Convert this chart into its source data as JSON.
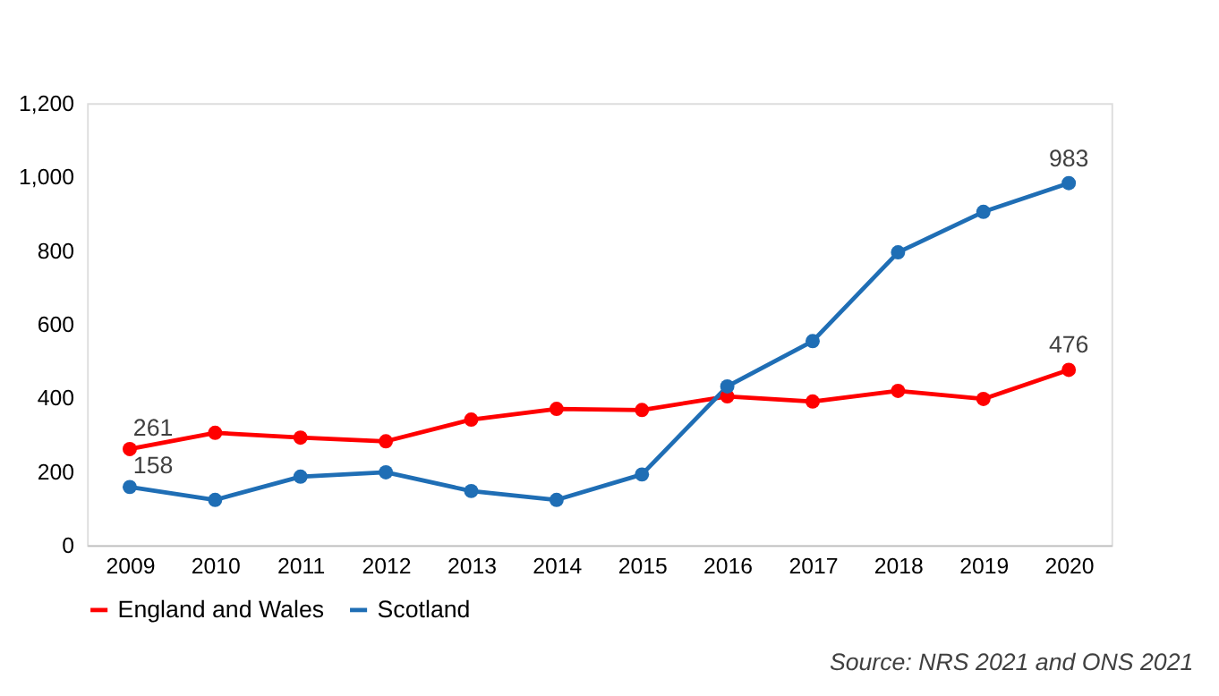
{
  "chart_data": {
    "type": "line",
    "categories": [
      "2009",
      "2010",
      "2011",
      "2012",
      "2013",
      "2014",
      "2015",
      "2016",
      "2017",
      "2018",
      "2019",
      "2020"
    ],
    "series": [
      {
        "name": "England and Wales",
        "color": "#ff0000",
        "values": [
          261,
          305,
          292,
          282,
          341,
          370,
          367,
          404,
          390,
          419,
          397,
          476
        ],
        "value_labels": [
          "261",
          null,
          null,
          null,
          null,
          null,
          null,
          null,
          null,
          null,
          null,
          "476"
        ]
      },
      {
        "name": "Scotland",
        "color": "#1f6eb5",
        "values": [
          158,
          123,
          186,
          198,
          147,
          123,
          192,
          431,
          554,
          795,
          905,
          983
        ],
        "value_labels": [
          "158",
          null,
          null,
          null,
          null,
          null,
          null,
          null,
          null,
          null,
          null,
          "983"
        ]
      }
    ],
    "ylim": [
      0,
      1200
    ],
    "yticks": [
      0,
      {
        "value": 200,
        "label": "200"
      },
      {
        "value": 400,
        "label": "400"
      },
      {
        "value": 600,
        "label": "600"
      },
      {
        "value": 800,
        "label": "800"
      },
      {
        "value": 1000,
        "label": "1,000"
      },
      {
        "value": 1200,
        "label": "1,200"
      }
    ],
    "grid": false,
    "legend": "bottom",
    "marker": "circle",
    "line_style": "solid",
    "annotations": [
      "Source: NRS 2021 and ONS 2021"
    ]
  }
}
